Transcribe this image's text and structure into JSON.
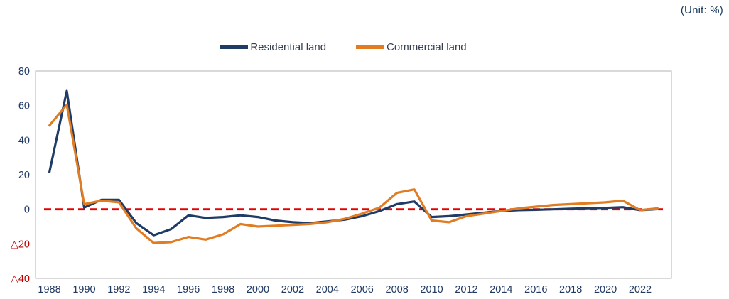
{
  "unit_label": "(Unit: %)",
  "legend": [
    {
      "label": "Residential land",
      "color": "#1f3c66"
    },
    {
      "label": "Commercial land",
      "color": "#e17c22"
    }
  ],
  "chart_data": {
    "type": "line",
    "title": "",
    "xlabel": "",
    "ylabel": "",
    "x": [
      1988,
      1989,
      1990,
      1991,
      1992,
      1993,
      1994,
      1995,
      1996,
      1997,
      1998,
      1999,
      2000,
      2001,
      2002,
      2003,
      2004,
      2005,
      2006,
      2007,
      2008,
      2009,
      2010,
      2011,
      2012,
      2013,
      2014,
      2015,
      2016,
      2017,
      2018,
      2019,
      2020,
      2021,
      2022,
      2023
    ],
    "series": [
      {
        "name": "Residential land",
        "color": "#1f3c66",
        "values": [
          21.5,
          68.5,
          1.0,
          5.5,
          5.5,
          -8.0,
          -15.0,
          -11.5,
          -3.5,
          -5.0,
          -4.5,
          -3.5,
          -4.5,
          -6.5,
          -7.5,
          -8.0,
          -7.0,
          -6.0,
          -4.0,
          -1.0,
          3.0,
          4.5,
          -4.5,
          -4.0,
          -3.0,
          -2.0,
          -1.0,
          -0.5,
          -0.3,
          0.0,
          0.3,
          0.6,
          0.8,
          1.2,
          -0.5,
          0.1
        ]
      },
      {
        "name": "Commercial land",
        "color": "#e17c22",
        "values": [
          48.5,
          60.5,
          3.0,
          5.0,
          4.0,
          -11.0,
          -19.5,
          -19.0,
          -16.0,
          -17.5,
          -14.5,
          -8.5,
          -10.0,
          -9.5,
          -9.0,
          -8.5,
          -7.5,
          -5.5,
          -2.5,
          1.0,
          9.5,
          11.5,
          -6.5,
          -7.5,
          -4.0,
          -2.5,
          -1.0,
          0.5,
          1.5,
          2.5,
          3.0,
          3.5,
          4.0,
          5.0,
          -0.5,
          0.5
        ]
      }
    ],
    "ylim": [
      -40,
      80
    ],
    "yticks": [
      80,
      60,
      40,
      20,
      0,
      -20,
      -40
    ],
    "xtick_years": [
      1988,
      1990,
      1992,
      1994,
      1996,
      1998,
      2000,
      2002,
      2004,
      2006,
      2008,
      2010,
      2012,
      2014,
      2016,
      2018,
      2020,
      2022
    ],
    "negative_prefix": "△",
    "grid": false,
    "legend_position": "top-center",
    "zero_line": {
      "value": 0,
      "style": "dashed",
      "color": "#e60000"
    },
    "colors": {
      "axis_label": "#1f3864",
      "negative_label": "#c00000",
      "plot_border": "#b3b3b3"
    }
  }
}
